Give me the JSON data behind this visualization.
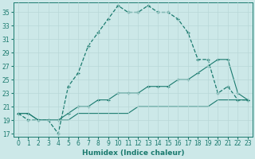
{
  "xlabel": "Humidex (Indice chaleur)",
  "background_color": "#cce8e8",
  "line_color": "#1a7a6e",
  "grid_color": "#b8d8d8",
  "x_values": [
    0,
    1,
    2,
    3,
    4,
    5,
    6,
    7,
    8,
    9,
    10,
    11,
    12,
    13,
    14,
    15,
    16,
    17,
    18,
    19,
    20,
    21,
    22,
    23
  ],
  "y_main": [
    20,
    19,
    19,
    19,
    17,
    24,
    26,
    30,
    32,
    34,
    36,
    35,
    35,
    36,
    35,
    35,
    34,
    32,
    28,
    28,
    23,
    24,
    22,
    22
  ],
  "y_line2": [
    20,
    20,
    19,
    19,
    19,
    20,
    21,
    21,
    22,
    22,
    23,
    23,
    23,
    24,
    24,
    24,
    25,
    25,
    26,
    27,
    28,
    28,
    23,
    22
  ],
  "y_line3": [
    20,
    20,
    19,
    19,
    19,
    19,
    20,
    20,
    20,
    20,
    20,
    20,
    21,
    21,
    21,
    21,
    21,
    21,
    21,
    21,
    22,
    22,
    22,
    22
  ],
  "xlim": [
    -0.5,
    23.5
  ],
  "ylim": [
    16.5,
    36.5
  ],
  "yticks": [
    17,
    19,
    21,
    23,
    25,
    27,
    29,
    31,
    33,
    35
  ],
  "xticks": [
    0,
    1,
    2,
    3,
    4,
    5,
    6,
    7,
    8,
    9,
    10,
    11,
    12,
    13,
    14,
    15,
    16,
    17,
    18,
    19,
    20,
    21,
    22,
    23
  ],
  "tick_fontsize": 5.5,
  "label_fontsize": 6.5
}
